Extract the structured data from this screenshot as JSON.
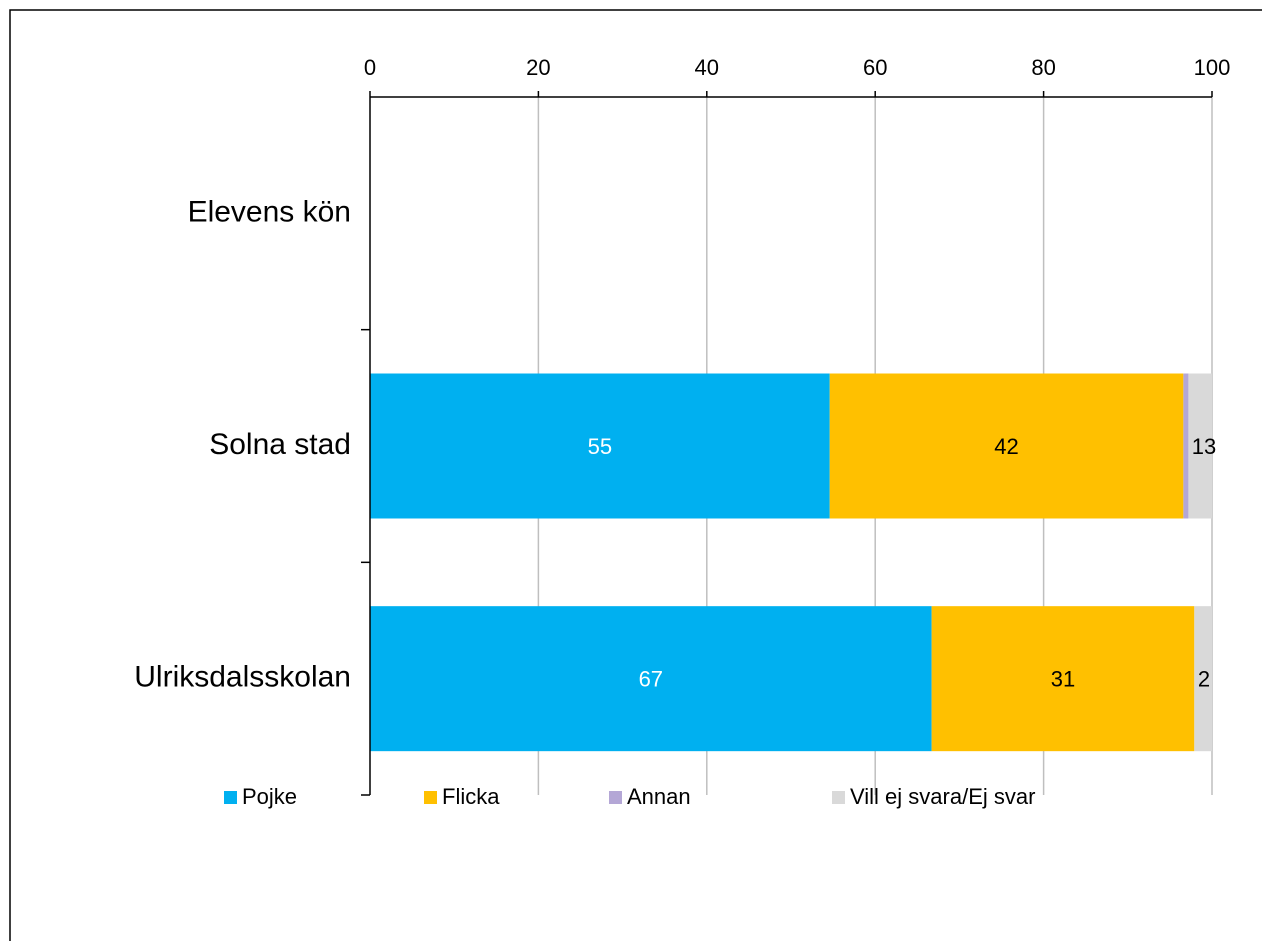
{
  "chart_data": {
    "type": "bar",
    "orientation": "horizontal",
    "stacked": true,
    "title": "",
    "xlabel": "",
    "ylabel": "",
    "xlim": [
      0,
      100
    ],
    "x_ticks": [
      0,
      20,
      40,
      60,
      80,
      100
    ],
    "x_axis_position": "top",
    "grid": true,
    "legend_position": "bottom",
    "categories": [
      "Elevens kön",
      "Solna stad",
      "Ulriksdalsskolan"
    ],
    "series": [
      {
        "name": "Pojke",
        "color": "#00B0F0",
        "values": [
          null,
          54.6,
          66.7
        ],
        "labels": [
          "",
          "55",
          "67"
        ],
        "label_color": "#ffffff"
      },
      {
        "name": "Flicka",
        "color": "#FFC000",
        "values": [
          null,
          42.0,
          31.2
        ],
        "labels": [
          "",
          "42",
          "31"
        ],
        "label_color": "#000000"
      },
      {
        "name": "Annan",
        "color": "#B4A7D6",
        "values": [
          null,
          0.6,
          0.0
        ],
        "labels": [
          "",
          "",
          ""
        ],
        "label_color": "#000000"
      },
      {
        "name": "Vill ej svara/Ej svar",
        "color": "#D9D9D9",
        "values": [
          null,
          2.8,
          2.1
        ],
        "labels": [
          "",
          "",
          ""
        ],
        "label_color": "#000000"
      }
    ],
    "end_labels": [
      "",
      "13",
      "2"
    ]
  }
}
